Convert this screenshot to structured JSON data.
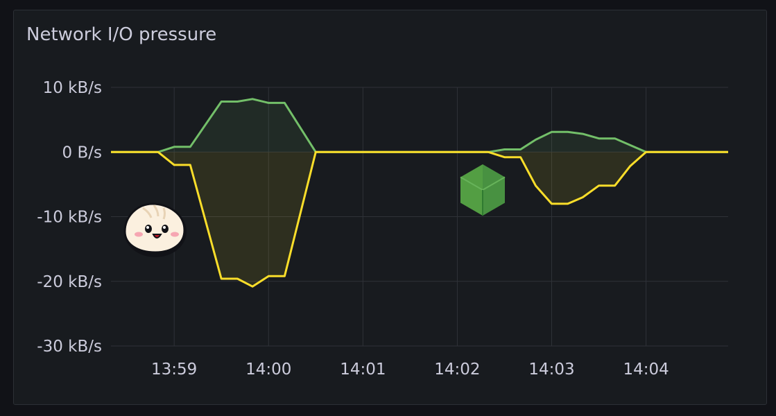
{
  "panel": {
    "title": "Network I/O pressure"
  },
  "colors": {
    "background": "#111217",
    "panel": "#181b1f",
    "grid": "#2f3238",
    "text": "#ccccdc",
    "received": "#73bf69",
    "transmitted": "#fade2a"
  },
  "icons": {
    "bun": "bun-logo-icon",
    "node": "nodejs-logo-icon"
  },
  "chart_data": {
    "type": "area",
    "title": "Network I/O pressure",
    "ylim": [
      -30,
      10
    ],
    "ylabels": [
      "10 kB/s",
      "0 B/s",
      "-10 kB/s",
      "-20 kB/s",
      "-30 kB/s"
    ],
    "yticks": [
      10,
      0,
      -10,
      -20,
      -30
    ],
    "xlabels": [
      "13:59",
      "14:00",
      "14:01",
      "14:02",
      "14:03",
      "14:04"
    ],
    "xticks": [
      0,
      1,
      2,
      3,
      4,
      5
    ],
    "xlim": [
      -0.67,
      5.87
    ],
    "grid": true,
    "legend": "none",
    "series": [
      {
        "color": "#73bf69",
        "points": [
          [
            -0.67,
            0
          ],
          [
            -0.17,
            0
          ],
          [
            0,
            0.8
          ],
          [
            0.17,
            0.8
          ],
          [
            0.5,
            7.8
          ],
          [
            0.67,
            7.8
          ],
          [
            0.83,
            8.2
          ],
          [
            1,
            7.6
          ],
          [
            1.17,
            7.6
          ],
          [
            1.5,
            0
          ],
          [
            3.33,
            0
          ],
          [
            3.5,
            0.4
          ],
          [
            3.67,
            0.4
          ],
          [
            3.83,
            1.9
          ],
          [
            4,
            3.1
          ],
          [
            4.17,
            3.1
          ],
          [
            4.33,
            2.8
          ],
          [
            4.5,
            2.1
          ],
          [
            4.67,
            2.1
          ],
          [
            5,
            0
          ],
          [
            5.87,
            0
          ]
        ]
      },
      {
        "color": "#fade2a",
        "points": [
          [
            -0.67,
            0
          ],
          [
            -0.17,
            0
          ],
          [
            0,
            -2
          ],
          [
            0.17,
            -2
          ],
          [
            0.5,
            -19.6
          ],
          [
            0.67,
            -19.6
          ],
          [
            0.83,
            -20.8
          ],
          [
            1,
            -19.2
          ],
          [
            1.17,
            -19.2
          ],
          [
            1.5,
            0
          ],
          [
            3.33,
            0
          ],
          [
            3.5,
            -0.8
          ],
          [
            3.67,
            -0.8
          ],
          [
            3.83,
            -5.2
          ],
          [
            4,
            -8
          ],
          [
            4.17,
            -8
          ],
          [
            4.33,
            -7
          ],
          [
            4.5,
            -5.2
          ],
          [
            4.67,
            -5.2
          ],
          [
            4.83,
            -2.2
          ],
          [
            5,
            0
          ],
          [
            5.87,
            0
          ]
        ]
      }
    ]
  }
}
